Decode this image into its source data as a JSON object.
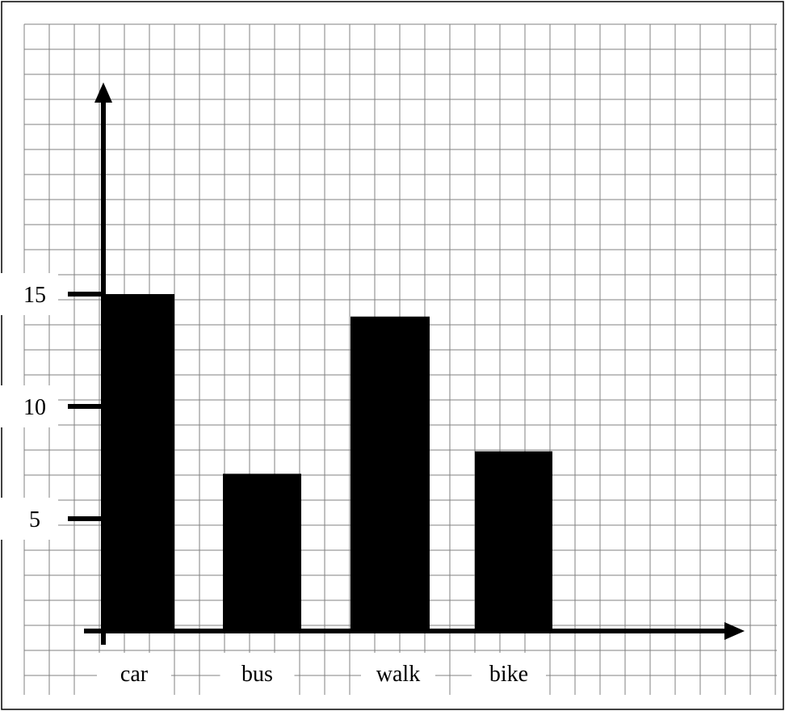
{
  "chart_data": {
    "type": "bar",
    "categories": [
      "car",
      "bus",
      "walk",
      "bike"
    ],
    "values": [
      15,
      7,
      14,
      8
    ],
    "title": "",
    "xlabel": "",
    "ylabel": "",
    "yticks": [
      "5",
      "10",
      "15"
    ],
    "ylim": [
      0,
      24
    ],
    "grid": true,
    "colors": {
      "bar": "#000000",
      "grid": "#808080",
      "axis": "#000000"
    }
  }
}
